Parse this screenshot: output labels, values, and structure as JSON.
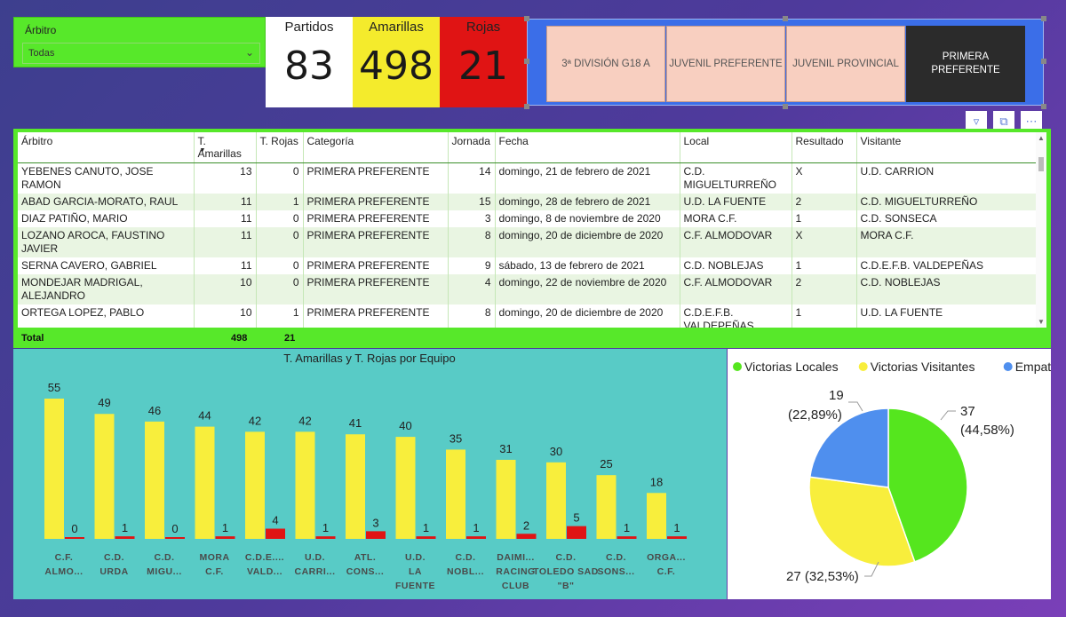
{
  "slicer": {
    "label": "Árbitro",
    "value": "Todas"
  },
  "kpis": [
    {
      "title": "Partidos",
      "value": "83"
    },
    {
      "title": "Amarillas",
      "value": "498"
    },
    {
      "title": "Rojas",
      "value": "21"
    }
  ],
  "categories": [
    {
      "label": "3ª DIVISIÓN G18 A",
      "selected": false
    },
    {
      "label": "JUVENIL PREFERENTE",
      "selected": false
    },
    {
      "label": "JUVENIL PROVINCIAL",
      "selected": false
    },
    {
      "label": "PRIMERA PREFERENTE",
      "selected": true
    }
  ],
  "table": {
    "columns": [
      "Árbitro",
      "T. Amarillas",
      "T. Rojas",
      "Categoría",
      "Jornada",
      "Fecha",
      "Local",
      "Resultado",
      "Visitante"
    ],
    "rows": [
      [
        "YEBENES CANUTO, JOSE RAMON",
        "13",
        "0",
        "PRIMERA PREFERENTE",
        "14",
        "domingo, 21 de febrero de 2021",
        "C.D. MIGUELTURREÑO",
        "X",
        "U.D. CARRION"
      ],
      [
        "ABAD GARCIA-MORATO, RAUL",
        "11",
        "1",
        "PRIMERA PREFERENTE",
        "15",
        "domingo, 28 de febrero de 2021",
        "U.D. LA FUENTE",
        "2",
        "C.D. MIGUELTURREÑO"
      ],
      [
        "DIAZ PATIÑO, MARIO",
        "11",
        "0",
        "PRIMERA PREFERENTE",
        "3",
        "domingo, 8 de noviembre de 2020",
        "MORA C.F.",
        "1",
        "C.D. SONSECA"
      ],
      [
        "LOZANO AROCA, FAUSTINO JAVIER",
        "11",
        "0",
        "PRIMERA PREFERENTE",
        "8",
        "domingo, 20 de diciembre de 2020",
        "C.F. ALMODOVAR",
        "X",
        "MORA C.F."
      ],
      [
        "SERNA CAVERO, GABRIEL",
        "11",
        "0",
        "PRIMERA PREFERENTE",
        "9",
        "sábado, 13 de febrero de 2021",
        "C.D. NOBLEJAS",
        "1",
        "C.D.E.F.B. VALDEPEÑAS"
      ],
      [
        "MONDEJAR MADRIGAL, ALEJANDRO",
        "10",
        "0",
        "PRIMERA PREFERENTE",
        "4",
        "domingo, 22 de noviembre de 2020",
        "C.F. ALMODOVAR",
        "2",
        "C.D. NOBLEJAS"
      ],
      [
        "ORTEGA LOPEZ, PABLO",
        "10",
        "1",
        "PRIMERA PREFERENTE",
        "8",
        "domingo, 20 de diciembre de 2020",
        "C.D.E.F.B. VALDEPEÑAS",
        "1",
        "U.D. LA FUENTE"
      ]
    ],
    "total_label": "Total",
    "total_amarillas": "498",
    "total_rojas": "21"
  },
  "chart_data": [
    {
      "type": "bar",
      "title": "T. Amarillas y T. Rojas por Equipo",
      "ylabel": "T. Amarillas y T. Rojas",
      "categories": [
        "C.F. ALMO...",
        "C.D. URDA",
        "C.D. MIGU...",
        "MORA C.F.",
        "C.D.E.... VALD...",
        "U.D. CARRI...",
        "ATL. CONS...",
        "U.D. LA FUENTE",
        "C.D. NOBL...",
        "DAIMI... RACING CLUB",
        "C.D. TOLEDO SAD \"B\"",
        "C.D. SONS...",
        "ORGA... C.F."
      ],
      "series": [
        {
          "values": [
            55,
            49,
            46,
            44,
            42,
            42,
            41,
            40,
            35,
            31,
            30,
            25,
            18
          ],
          "color": "#f8ee3c"
        },
        {
          "values": [
            0,
            1,
            0,
            1,
            4,
            1,
            3,
            1,
            1,
            2,
            5,
            1,
            1
          ],
          "color": "#e01414"
        }
      ],
      "ylim": [
        0,
        55
      ]
    },
    {
      "type": "pie",
      "labels": [
        "Victorias Locales",
        "Victorias Visitantes",
        "Empates"
      ],
      "values": [
        37,
        27,
        19
      ],
      "value_labels": [
        "37 (44,58%)",
        "27 (32,53%)",
        "19 (22,89%)"
      ],
      "colors": [
        "#55e61e",
        "#f8ee3c",
        "#4f8fee"
      ],
      "legend": "top"
    }
  ],
  "icons": {
    "filter": "filter-icon",
    "focus": "focus-mode-icon",
    "more": "more-options-icon"
  }
}
